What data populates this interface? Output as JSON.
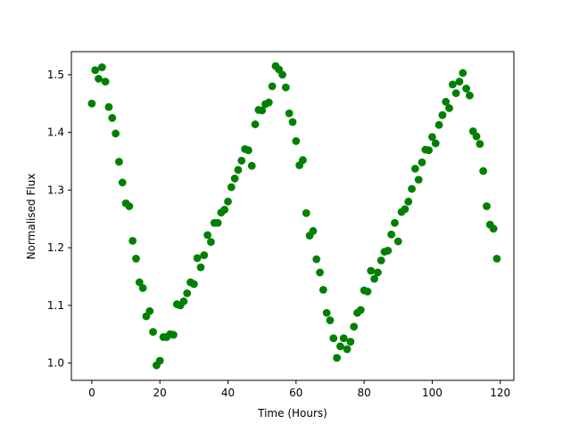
{
  "chart_data": {
    "type": "scatter",
    "title": "",
    "xlabel": "Time (Hours)",
    "ylabel": "Normalised Flux",
    "xlim": [
      -6,
      124
    ],
    "ylim": [
      0.97,
      1.54
    ],
    "xticks": [
      0,
      20,
      40,
      60,
      80,
      100,
      120
    ],
    "xtick_labels": [
      "0",
      "20",
      "40",
      "60",
      "80",
      "100",
      "120"
    ],
    "yticks": [
      1.0,
      1.1,
      1.2,
      1.3,
      1.4,
      1.5
    ],
    "ytick_labels": [
      "1.0",
      "1.1",
      "1.2",
      "1.3",
      "1.4",
      "1.5"
    ],
    "grid": false,
    "legend": "none",
    "marker_color": "#008000",
    "points": [
      {
        "x": 0,
        "y": 1.45
      },
      {
        "x": 1,
        "y": 1.508
      },
      {
        "x": 2,
        "y": 1.493
      },
      {
        "x": 3,
        "y": 1.513
      },
      {
        "x": 4,
        "y": 1.488
      },
      {
        "x": 5,
        "y": 1.444
      },
      {
        "x": 6,
        "y": 1.425
      },
      {
        "x": 7,
        "y": 1.398
      },
      {
        "x": 8,
        "y": 1.349
      },
      {
        "x": 9,
        "y": 1.313
      },
      {
        "x": 10,
        "y": 1.277
      },
      {
        "x": 11,
        "y": 1.272
      },
      {
        "x": 12,
        "y": 1.212
      },
      {
        "x": 13,
        "y": 1.181
      },
      {
        "x": 14,
        "y": 1.14
      },
      {
        "x": 15,
        "y": 1.13
      },
      {
        "x": 16,
        "y": 1.081
      },
      {
        "x": 17,
        "y": 1.09
      },
      {
        "x": 18,
        "y": 1.054
      },
      {
        "x": 19,
        "y": 0.996
      },
      {
        "x": 20,
        "y": 1.004
      },
      {
        "x": 21,
        "y": 1.045
      },
      {
        "x": 22,
        "y": 1.045
      },
      {
        "x": 23,
        "y": 1.05
      },
      {
        "x": 24,
        "y": 1.049
      },
      {
        "x": 25,
        "y": 1.102
      },
      {
        "x": 26,
        "y": 1.1
      },
      {
        "x": 27,
        "y": 1.107
      },
      {
        "x": 28,
        "y": 1.121
      },
      {
        "x": 29,
        "y": 1.14
      },
      {
        "x": 30,
        "y": 1.137
      },
      {
        "x": 31,
        "y": 1.182
      },
      {
        "x": 32,
        "y": 1.166
      },
      {
        "x": 33,
        "y": 1.187
      },
      {
        "x": 34,
        "y": 1.222
      },
      {
        "x": 35,
        "y": 1.21
      },
      {
        "x": 36,
        "y": 1.243
      },
      {
        "x": 37,
        "y": 1.243
      },
      {
        "x": 38,
        "y": 1.261
      },
      {
        "x": 39,
        "y": 1.266
      },
      {
        "x": 40,
        "y": 1.28
      },
      {
        "x": 41,
        "y": 1.305
      },
      {
        "x": 42,
        "y": 1.32
      },
      {
        "x": 43,
        "y": 1.335
      },
      {
        "x": 44,
        "y": 1.351
      },
      {
        "x": 45,
        "y": 1.371
      },
      {
        "x": 46,
        "y": 1.369
      },
      {
        "x": 47,
        "y": 1.342
      },
      {
        "x": 48,
        "y": 1.414
      },
      {
        "x": 49,
        "y": 1.439
      },
      {
        "x": 50,
        "y": 1.438
      },
      {
        "x": 51,
        "y": 1.449
      },
      {
        "x": 52,
        "y": 1.452
      },
      {
        "x": 53,
        "y": 1.48
      },
      {
        "x": 54,
        "y": 1.515
      },
      {
        "x": 55,
        "y": 1.509
      },
      {
        "x": 56,
        "y": 1.5
      },
      {
        "x": 57,
        "y": 1.478
      },
      {
        "x": 58,
        "y": 1.433
      },
      {
        "x": 59,
        "y": 1.418
      },
      {
        "x": 60,
        "y": 1.385
      },
      {
        "x": 61,
        "y": 1.343
      },
      {
        "x": 62,
        "y": 1.352
      },
      {
        "x": 63,
        "y": 1.26
      },
      {
        "x": 64,
        "y": 1.221
      },
      {
        "x": 65,
        "y": 1.229
      },
      {
        "x": 66,
        "y": 1.18
      },
      {
        "x": 67,
        "y": 1.157
      },
      {
        "x": 68,
        "y": 1.127
      },
      {
        "x": 69,
        "y": 1.087
      },
      {
        "x": 70,
        "y": 1.074
      },
      {
        "x": 71,
        "y": 1.043
      },
      {
        "x": 72,
        "y": 1.009
      },
      {
        "x": 73,
        "y": 1.029
      },
      {
        "x": 74,
        "y": 1.043
      },
      {
        "x": 75,
        "y": 1.024
      },
      {
        "x": 76,
        "y": 1.037
      },
      {
        "x": 77,
        "y": 1.063
      },
      {
        "x": 78,
        "y": 1.087
      },
      {
        "x": 79,
        "y": 1.092
      },
      {
        "x": 80,
        "y": 1.126
      },
      {
        "x": 81,
        "y": 1.124
      },
      {
        "x": 82,
        "y": 1.16
      },
      {
        "x": 83,
        "y": 1.146
      },
      {
        "x": 84,
        "y": 1.157
      },
      {
        "x": 85,
        "y": 1.178
      },
      {
        "x": 86,
        "y": 1.193
      },
      {
        "x": 87,
        "y": 1.195
      },
      {
        "x": 88,
        "y": 1.223
      },
      {
        "x": 89,
        "y": 1.243
      },
      {
        "x": 90,
        "y": 1.211
      },
      {
        "x": 91,
        "y": 1.262
      },
      {
        "x": 92,
        "y": 1.267
      },
      {
        "x": 93,
        "y": 1.28
      },
      {
        "x": 94,
        "y": 1.302
      },
      {
        "x": 95,
        "y": 1.337
      },
      {
        "x": 96,
        "y": 1.318
      },
      {
        "x": 97,
        "y": 1.348
      },
      {
        "x": 98,
        "y": 1.37
      },
      {
        "x": 99,
        "y": 1.369
      },
      {
        "x": 100,
        "y": 1.392
      },
      {
        "x": 101,
        "y": 1.381
      },
      {
        "x": 102,
        "y": 1.413
      },
      {
        "x": 103,
        "y": 1.43
      },
      {
        "x": 104,
        "y": 1.453
      },
      {
        "x": 105,
        "y": 1.442
      },
      {
        "x": 106,
        "y": 1.483
      },
      {
        "x": 107,
        "y": 1.468
      },
      {
        "x": 108,
        "y": 1.488
      },
      {
        "x": 109,
        "y": 1.503
      },
      {
        "x": 110,
        "y": 1.476
      },
      {
        "x": 111,
        "y": 1.464
      },
      {
        "x": 112,
        "y": 1.402
      },
      {
        "x": 113,
        "y": 1.393
      },
      {
        "x": 114,
        "y": 1.38
      },
      {
        "x": 115,
        "y": 1.333
      },
      {
        "x": 116,
        "y": 1.272
      },
      {
        "x": 117,
        "y": 1.24
      },
      {
        "x": 118,
        "y": 1.233
      },
      {
        "x": 119,
        "y": 1.181
      }
    ]
  }
}
